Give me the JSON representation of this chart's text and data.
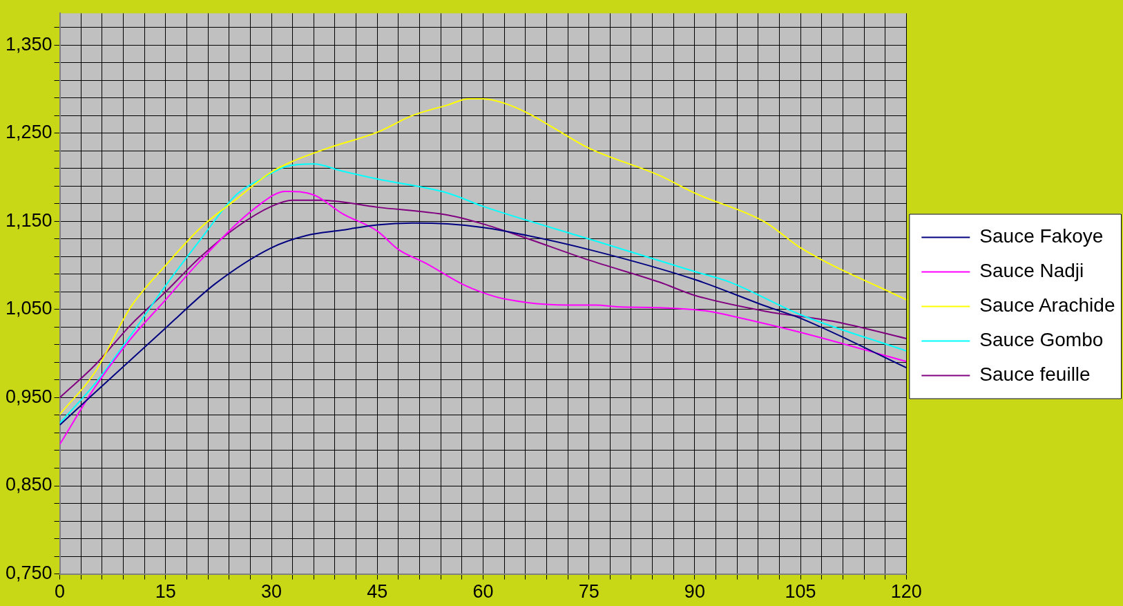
{
  "chart_data": {
    "type": "line",
    "xlim": [
      0,
      120
    ],
    "ylim": [
      0.75,
      1.386
    ],
    "xticks": [
      0,
      {
        "value": 3,
        "label": null
      },
      {
        "value": 6,
        "label": null
      },
      {
        "value": 9,
        "label": null
      },
      {
        "value": 12,
        "label": null
      },
      15,
      {
        "value": 18,
        "label": null
      },
      {
        "value": 21,
        "label": null
      },
      {
        "value": 24,
        "label": null
      },
      {
        "value": 27,
        "label": null
      },
      30,
      {
        "value": 33,
        "label": null
      },
      {
        "value": 36,
        "label": null
      },
      {
        "value": 39,
        "label": null
      },
      {
        "value": 42,
        "label": null
      },
      45,
      {
        "value": 48,
        "label": null
      },
      {
        "value": 51,
        "label": null
      },
      {
        "value": 54,
        "label": null
      },
      {
        "value": 57,
        "label": null
      },
      60,
      {
        "value": 63,
        "label": null
      },
      {
        "value": 66,
        "label": null
      },
      {
        "value": 69,
        "label": null
      },
      {
        "value": 72,
        "label": null
      },
      75,
      {
        "value": 78,
        "label": null
      },
      {
        "value": 81,
        "label": null
      },
      {
        "value": 84,
        "label": null
      },
      {
        "value": 87,
        "label": null
      },
      90,
      {
        "value": 93,
        "label": null
      },
      {
        "value": 96,
        "label": null
      },
      {
        "value": 99,
        "label": null
      },
      {
        "value": 102,
        "label": null
      },
      105,
      {
        "value": 108,
        "label": null
      },
      {
        "value": 111,
        "label": null
      },
      {
        "value": 114,
        "label": null
      },
      {
        "value": 117,
        "label": null
      },
      120
    ],
    "yticks": [
      {
        "value": 0.75,
        "label": "0,750"
      },
      {
        "value": 0.77,
        "label": null
      },
      {
        "value": 0.79,
        "label": null
      },
      {
        "value": 0.81,
        "label": null
      },
      {
        "value": 0.83,
        "label": null
      },
      {
        "value": 0.85,
        "label": "0,850"
      },
      {
        "value": 0.87,
        "label": null
      },
      {
        "value": 0.89,
        "label": null
      },
      {
        "value": 0.91,
        "label": null
      },
      {
        "value": 0.93,
        "label": null
      },
      {
        "value": 0.95,
        "label": "0,950"
      },
      {
        "value": 0.97,
        "label": null
      },
      {
        "value": 0.99,
        "label": null
      },
      {
        "value": 1.01,
        "label": null
      },
      {
        "value": 1.03,
        "label": null
      },
      {
        "value": 1.05,
        "label": "1,050"
      },
      {
        "value": 1.07,
        "label": null
      },
      {
        "value": 1.09,
        "label": null
      },
      {
        "value": 1.11,
        "label": null
      },
      {
        "value": 1.13,
        "label": null
      },
      {
        "value": 1.15,
        "label": "1,150"
      },
      {
        "value": 1.17,
        "label": null
      },
      {
        "value": 1.19,
        "label": null
      },
      {
        "value": 1.21,
        "label": null
      },
      {
        "value": 1.23,
        "label": null
      },
      {
        "value": 1.25,
        "label": "1,250"
      },
      {
        "value": 1.27,
        "label": null
      },
      {
        "value": 1.29,
        "label": null
      },
      {
        "value": 1.31,
        "label": null
      },
      {
        "value": 1.33,
        "label": null
      },
      {
        "value": 1.35,
        "label": "1,350"
      },
      {
        "value": 1.37,
        "label": null
      }
    ],
    "grid": true,
    "legend": "right",
    "marker": "none",
    "line_style": "solid",
    "series": [
      {
        "name": "Sauce Fakoye",
        "color": "#000080",
        "x": [
          0,
          15,
          22,
          30,
          35,
          40,
          45,
          50,
          55,
          60,
          65,
          75,
          90,
          100,
          105,
          120
        ],
        "values": [
          0.919,
          1.029,
          1.079,
          1.12,
          1.134,
          1.14,
          1.146,
          1.148,
          1.147,
          1.143,
          1.136,
          1.118,
          1.084,
          1.054,
          1.04,
          0.984
        ]
      },
      {
        "name": "Sauce Nadji",
        "color": "#ff00ff",
        "x": [
          0,
          5,
          10,
          15,
          20,
          28,
          32,
          36,
          40,
          45,
          48,
          52,
          57,
          60,
          63,
          72,
          76,
          79,
          85,
          92,
          95,
          105,
          120
        ],
        "values": [
          0.897,
          0.962,
          1.016,
          1.061,
          1.106,
          1.167,
          1.184,
          1.18,
          1.159,
          1.139,
          1.118,
          1.102,
          1.079,
          1.069,
          1.062,
          1.055,
          1.055,
          1.053,
          1.052,
          1.048,
          1.043,
          1.024,
          0.991
        ]
      },
      {
        "name": "Sauce Arachide",
        "color": "#ffff00",
        "x": [
          0,
          5,
          10,
          15,
          20,
          25,
          30,
          33,
          38,
          45,
          50,
          55,
          58,
          60,
          63,
          66,
          70,
          75,
          85,
          90,
          100,
          105,
          120
        ],
        "values": [
          0.931,
          0.979,
          1.052,
          1.1,
          1.143,
          1.175,
          1.206,
          1.218,
          1.233,
          1.251,
          1.27,
          1.282,
          1.289,
          1.289,
          1.284,
          1.274,
          1.256,
          1.233,
          1.202,
          1.182,
          1.149,
          1.12,
          1.061
        ]
      },
      {
        "name": "Sauce Gombo",
        "color": "#00ffff",
        "x": [
          0,
          5,
          10,
          15,
          20,
          25,
          29,
          32,
          36,
          40,
          45,
          55,
          60,
          75,
          90,
          95,
          105,
          120
        ],
        "values": [
          0.921,
          0.966,
          1.02,
          1.077,
          1.13,
          1.18,
          1.2,
          1.212,
          1.215,
          1.207,
          1.198,
          1.182,
          1.167,
          1.13,
          1.093,
          1.081,
          1.044,
          1.003
        ]
      },
      {
        "name": "Sauce feuille",
        "color": "#800080",
        "x": [
          0,
          5,
          10,
          15,
          20,
          25,
          30,
          33,
          37,
          45,
          55,
          60,
          65,
          75,
          85,
          90,
          100,
          110,
          120
        ],
        "values": [
          0.95,
          0.987,
          1.032,
          1.07,
          1.11,
          1.143,
          1.167,
          1.174,
          1.174,
          1.166,
          1.157,
          1.147,
          1.134,
          1.106,
          1.081,
          1.066,
          1.048,
          1.036,
          1.017
        ]
      }
    ]
  }
}
